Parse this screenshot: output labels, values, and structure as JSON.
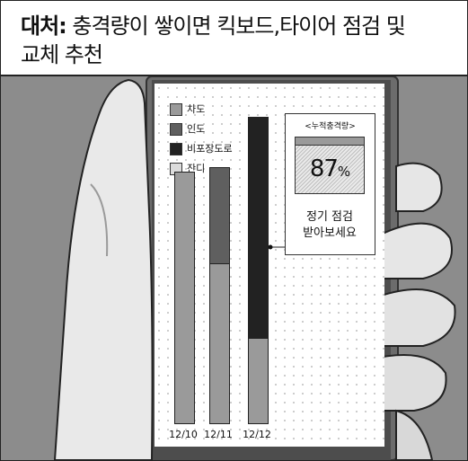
{
  "caption": {
    "label": "대처:",
    "text_line1": " 충격량이 쌓이면 킥보드,타이어 점검 및",
    "text_line2": "교체 추천"
  },
  "legend": [
    {
      "label": "차도",
      "color": "#9a9a9a"
    },
    {
      "label": "인도",
      "color": "#5f5f5f"
    },
    {
      "label": "비포장도로",
      "color": "#222222"
    },
    {
      "label": "잔디",
      "color": "#dcdcdc"
    }
  ],
  "chart_data": {
    "type": "bar",
    "categories": [
      "12/10",
      "12/11",
      "12/12"
    ],
    "series": [
      {
        "name": "차도",
        "values": [
          100,
          64,
          34
        ]
      },
      {
        "name": "인도",
        "values": [
          0,
          38,
          0
        ]
      },
      {
        "name": "비포장도로",
        "values": [
          0,
          0,
          88
        ]
      }
    ],
    "ylim": [
      0,
      122
    ],
    "grid": true,
    "legend_position": "top-left"
  },
  "impact_box": {
    "title": "<누적충격량>",
    "percent_value": "87",
    "percent_unit": "%",
    "fill_fraction": 0.87,
    "message_line1": "정기 점검",
    "message_line2": "받아보세요"
  },
  "colors": {
    "frame": "#222222",
    "scene_background": "#8f8f8f"
  }
}
